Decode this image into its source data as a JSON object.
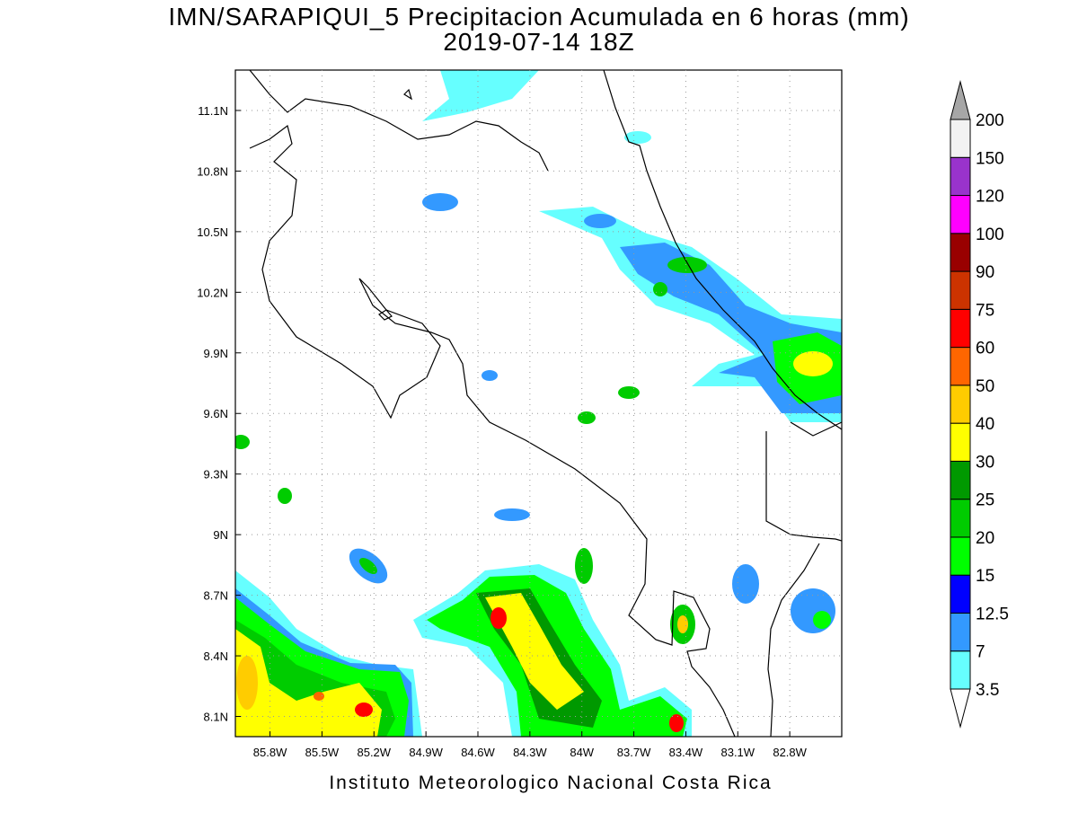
{
  "map": {
    "title": "IMN/SARAPIQUI_5 Precipitacion Acumulada en 6 horas (mm)",
    "subtitle": "2019-07-14 18Z",
    "footer": "Instituto Meteorologico Nacional Costa Rica",
    "lon_range": [
      -86.0,
      -82.5
    ],
    "lat_range": [
      8.0,
      11.3
    ],
    "lon_ticks": [
      {
        "value": -85.8,
        "label": "85.8W"
      },
      {
        "value": -85.5,
        "label": "85.5W"
      },
      {
        "value": -85.2,
        "label": "85.2W"
      },
      {
        "value": -84.9,
        "label": "84.9W"
      },
      {
        "value": -84.6,
        "label": "84.6W"
      },
      {
        "value": -84.3,
        "label": "84.3W"
      },
      {
        "value": -84.0,
        "label": "84W"
      },
      {
        "value": -83.7,
        "label": "83.7W"
      },
      {
        "value": -83.4,
        "label": "83.4W"
      },
      {
        "value": -83.1,
        "label": "83.1W"
      },
      {
        "value": -82.8,
        "label": "82.8W"
      }
    ],
    "lat_ticks": [
      {
        "value": 11.1,
        "label": "11.1N"
      },
      {
        "value": 10.8,
        "label": "10.8N"
      },
      {
        "value": 10.5,
        "label": "10.5N"
      },
      {
        "value": 10.2,
        "label": "10.2N"
      },
      {
        "value": 9.9,
        "label": "9.9N"
      },
      {
        "value": 9.6,
        "label": "9.6N"
      },
      {
        "value": 9.3,
        "label": "9.3N"
      },
      {
        "value": 9.0,
        "label": "9N"
      },
      {
        "value": 8.7,
        "label": "8.7N"
      },
      {
        "value": 8.4,
        "label": "8.4N"
      },
      {
        "value": 8.1,
        "label": "8.1N"
      }
    ],
    "colorbar": {
      "levels": [
        3.5,
        7,
        12.5,
        15,
        20,
        25,
        30,
        40,
        50,
        60,
        75,
        90,
        100,
        120,
        150,
        200
      ],
      "colors": [
        "#66ffff",
        "#3399ff",
        "#0000ff",
        "#00ff00",
        "#00cc00",
        "#009900",
        "#ffff00",
        "#ffcc00",
        "#ff6600",
        "#ff0000",
        "#cc3300",
        "#990000",
        "#ff00ff",
        "#9933cc",
        "#f2f2f2"
      ],
      "under_color": "#ffffff",
      "over_color": "#a6a6a6"
    }
  }
}
